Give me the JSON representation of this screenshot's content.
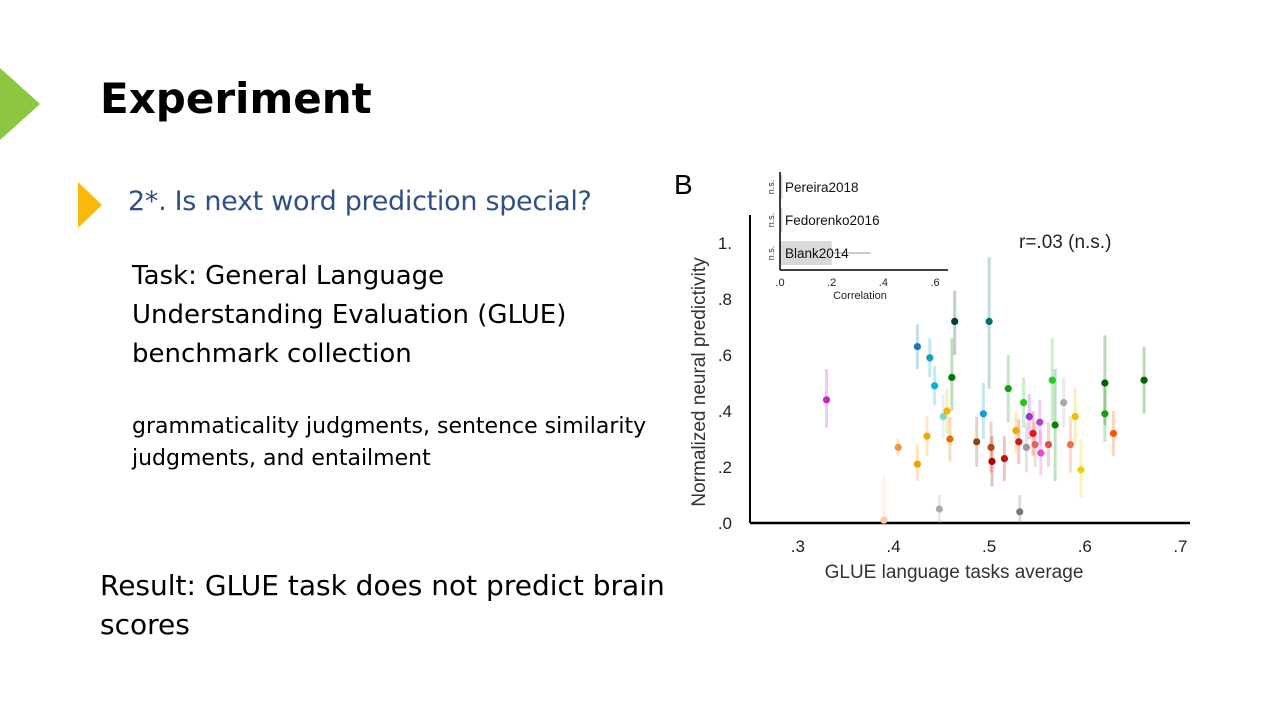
{
  "slide": {
    "title": "Experiment",
    "question": "2*. Is next word prediction special?",
    "task": "Task: General Language Understanding Evaluation (GLUE) benchmark collection",
    "detail": "grammaticality judgments, sentence similarity judgments, and entailment",
    "result": "Result: GLUE task does not predict brain scores",
    "accent_color": "#8dc63f",
    "bullet_color": "#f9b90a",
    "question_color": "#2e4f87"
  },
  "chart_data": [
    {
      "type": "scatter",
      "panel_label": "B",
      "xlabel": "GLUE language tasks average",
      "ylabel": "Normalized neural predictivity",
      "xlim": [
        0.25,
        0.71
      ],
      "ylim": [
        0.0,
        1.1
      ],
      "xticks": [
        ".3",
        ".4",
        ".5",
        ".6",
        ".7"
      ],
      "yticks": [
        ".0",
        ".2",
        ".4",
        ".6",
        ".8",
        "1."
      ],
      "annotation": "r=.03 (n.s.)",
      "grid": false,
      "points": [
        {
          "x": 0.33,
          "y": 0.44,
          "lo": 0.34,
          "hi": 0.55,
          "color": "#cc22cc"
        },
        {
          "x": 0.39,
          "y": 0.01,
          "lo": 0.0,
          "hi": 0.17,
          "color": "#ffc9a0"
        },
        {
          "x": 0.405,
          "y": 0.27,
          "lo": 0.24,
          "hi": 0.3,
          "color": "#e89a3a"
        },
        {
          "x": 0.425,
          "y": 0.21,
          "lo": 0.15,
          "hi": 0.28,
          "color": "#f5a000"
        },
        {
          "x": 0.425,
          "y": 0.63,
          "lo": 0.55,
          "hi": 0.71,
          "color": "#1a78b8"
        },
        {
          "x": 0.435,
          "y": 0.31,
          "lo": 0.24,
          "hi": 0.38,
          "color": "#f0a800"
        },
        {
          "x": 0.438,
          "y": 0.59,
          "lo": 0.52,
          "hi": 0.66,
          "color": "#14a0b0"
        },
        {
          "x": 0.443,
          "y": 0.49,
          "lo": 0.42,
          "hi": 0.56,
          "color": "#00b4d8"
        },
        {
          "x": 0.448,
          "y": 0.05,
          "lo": 0.0,
          "hi": 0.1,
          "color": "#aaaaaa"
        },
        {
          "x": 0.452,
          "y": 0.38,
          "lo": 0.3,
          "hi": 0.46,
          "color": "#7dd3d8"
        },
        {
          "x": 0.456,
          "y": 0.4,
          "lo": 0.32,
          "hi": 0.48,
          "color": "#f0b400"
        },
        {
          "x": 0.459,
          "y": 0.3,
          "lo": 0.22,
          "hi": 0.38,
          "color": "#e07000"
        },
        {
          "x": 0.461,
          "y": 0.52,
          "lo": 0.4,
          "hi": 0.66,
          "color": "#007a00"
        },
        {
          "x": 0.464,
          "y": 0.72,
          "lo": 0.6,
          "hi": 0.83,
          "color": "#003d3d"
        },
        {
          "x": 0.487,
          "y": 0.29,
          "lo": 0.2,
          "hi": 0.38,
          "color": "#8b4a14"
        },
        {
          "x": 0.494,
          "y": 0.39,
          "lo": 0.3,
          "hi": 0.5,
          "color": "#1a9ad8"
        },
        {
          "x": 0.5,
          "y": 0.72,
          "lo": 0.48,
          "hi": 0.95,
          "color": "#007070"
        },
        {
          "x": 0.502,
          "y": 0.27,
          "lo": 0.18,
          "hi": 0.36,
          "color": "#b04a10"
        },
        {
          "x": 0.503,
          "y": 0.22,
          "lo": 0.13,
          "hi": 0.31,
          "color": "#aa0000"
        },
        {
          "x": 0.516,
          "y": 0.23,
          "lo": 0.15,
          "hi": 0.31,
          "color": "#c41010"
        },
        {
          "x": 0.52,
          "y": 0.48,
          "lo": 0.36,
          "hi": 0.6,
          "color": "#14a014"
        },
        {
          "x": 0.528,
          "y": 0.33,
          "lo": 0.25,
          "hi": 0.4,
          "color": "#f0a800"
        },
        {
          "x": 0.531,
          "y": 0.29,
          "lo": 0.21,
          "hi": 0.37,
          "color": "#cc1a1a"
        },
        {
          "x": 0.532,
          "y": 0.04,
          "lo": 0.0,
          "hi": 0.1,
          "color": "#777777"
        },
        {
          "x": 0.536,
          "y": 0.43,
          "lo": 0.34,
          "hi": 0.52,
          "color": "#1ec81e"
        },
        {
          "x": 0.539,
          "y": 0.27,
          "lo": 0.18,
          "hi": 0.36,
          "color": "#999999"
        },
        {
          "x": 0.542,
          "y": 0.38,
          "lo": 0.3,
          "hi": 0.46,
          "color": "#9b30e0"
        },
        {
          "x": 0.546,
          "y": 0.32,
          "lo": 0.24,
          "hi": 0.4,
          "color": "#ee1111"
        },
        {
          "x": 0.548,
          "y": 0.28,
          "lo": 0.2,
          "hi": 0.36,
          "color": "#f06060"
        },
        {
          "x": 0.553,
          "y": 0.36,
          "lo": 0.28,
          "hi": 0.44,
          "color": "#b040d0"
        },
        {
          "x": 0.554,
          "y": 0.25,
          "lo": 0.17,
          "hi": 0.33,
          "color": "#e24ad2"
        },
        {
          "x": 0.562,
          "y": 0.28,
          "lo": 0.2,
          "hi": 0.36,
          "color": "#e05050"
        },
        {
          "x": 0.566,
          "y": 0.51,
          "lo": 0.36,
          "hi": 0.66,
          "color": "#22cc22"
        },
        {
          "x": 0.569,
          "y": 0.35,
          "lo": 0.15,
          "hi": 0.55,
          "color": "#008800"
        },
        {
          "x": 0.578,
          "y": 0.43,
          "lo": 0.34,
          "hi": 0.52,
          "color": "#aaaaaa"
        },
        {
          "x": 0.585,
          "y": 0.28,
          "lo": 0.18,
          "hi": 0.38,
          "color": "#f07050"
        },
        {
          "x": 0.59,
          "y": 0.38,
          "lo": 0.28,
          "hi": 0.48,
          "color": "#f0c000"
        },
        {
          "x": 0.596,
          "y": 0.19,
          "lo": 0.09,
          "hi": 0.3,
          "color": "#f0d000"
        },
        {
          "x": 0.621,
          "y": 0.5,
          "lo": 0.35,
          "hi": 0.67,
          "color": "#006600"
        },
        {
          "x": 0.621,
          "y": 0.39,
          "lo": 0.29,
          "hi": 0.49,
          "color": "#14a014"
        },
        {
          "x": 0.63,
          "y": 0.32,
          "lo": 0.24,
          "hi": 0.4,
          "color": "#ff5500"
        },
        {
          "x": 0.662,
          "y": 0.51,
          "lo": 0.39,
          "hi": 0.63,
          "color": "#006600"
        }
      ]
    },
    {
      "type": "bar",
      "orientation": "horizontal",
      "categories": [
        "Pereira2018",
        "Fedorenko2016",
        "Blank2014"
      ],
      "significance": [
        "n.s.",
        "n.s.",
        "n.s."
      ],
      "values": [
        0.01,
        0.01,
        0.2
      ],
      "ci_high": [
        0.01,
        0.01,
        0.35
      ],
      "xlabel": "Correlation",
      "xlim": [
        0,
        0.65
      ],
      "xticks": [
        ".0",
        ".2",
        ".4",
        ".6"
      ],
      "bar_color": "#d9d9d9"
    }
  ]
}
